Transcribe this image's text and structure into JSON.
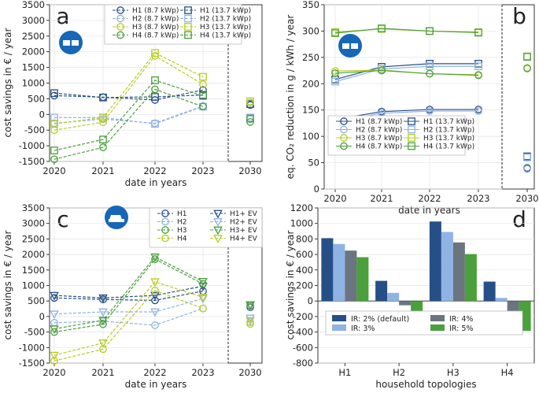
{
  "colors": {
    "blue_dark": "#274f87",
    "blue_light": "#8fb3e3",
    "green": "#4aa03a",
    "yellow": "#b7cc22",
    "grey": "#6b7580",
    "icon_bg": "#1766b8"
  },
  "chart_data": [
    {
      "id": "a",
      "type": "line",
      "panel_label": "a",
      "xlabel": "date in years",
      "ylabel": "cost savings in € / year",
      "ylim": [
        -1500,
        3500
      ],
      "yticks": [
        -1500,
        -1000,
        -500,
        0,
        500,
        1000,
        1500,
        2000,
        2500,
        3000,
        3500
      ],
      "x": [
        2020,
        2021,
        2022,
        2023
      ],
      "xticks": [
        "2020",
        "2021",
        "2022",
        "2023",
        "2030"
      ],
      "series": [
        {
          "name": "H1 (8.7 kWp)",
          "color": "blue_dark",
          "marker": "circle",
          "dash": true,
          "values": [
            600,
            550,
            460,
            780
          ],
          "v2030": 300
        },
        {
          "name": "H1 (13.7 kWp)",
          "color": "blue_dark",
          "marker": "square",
          "dash": true,
          "values": [
            680,
            540,
            560,
            620
          ],
          "v2030": 330
        },
        {
          "name": "H2 (8.7 kWp)",
          "color": "blue_light",
          "marker": "circle",
          "dash": true,
          "values": [
            -280,
            -150,
            -280,
            270
          ],
          "v2030": -150
        },
        {
          "name": "H2 (13.7 kWp)",
          "color": "blue_light",
          "marker": "square",
          "dash": true,
          "values": [
            -100,
            -100,
            -300,
            250
          ],
          "v2030": -100
        },
        {
          "name": "H3 (8.7 kWp)",
          "color": "yellow",
          "marker": "circle",
          "dash": true,
          "values": [
            -500,
            -250,
            1870,
            960
          ],
          "v2030": 380
        },
        {
          "name": "H3 (13.7 kWp)",
          "color": "yellow",
          "marker": "square",
          "dash": true,
          "values": [
            -300,
            -100,
            1960,
            1200
          ],
          "v2030": 420
        },
        {
          "name": "H4 (8.7 kWp)",
          "color": "green",
          "marker": "circle",
          "dash": true,
          "values": [
            -1430,
            -1050,
            800,
            250
          ],
          "v2030": -240
        },
        {
          "name": "H4 (13.7 kWp)",
          "color": "green",
          "marker": "square",
          "dash": true,
          "values": [
            -1150,
            -800,
            1090,
            590
          ],
          "v2030": -130
        }
      ]
    },
    {
      "id": "b",
      "type": "line",
      "panel_label": "b",
      "xlabel": "date in years",
      "ylabel": "eq. CO₂ reduction in g / kWh / year",
      "ylim": [
        0,
        350
      ],
      "yticks": [
        0,
        50,
        100,
        150,
        200,
        250,
        300,
        350
      ],
      "x": [
        2020,
        2021,
        2022,
        2023
      ],
      "xticks": [
        "2020",
        "2021",
        "2022",
        "2023",
        "2030"
      ],
      "series": [
        {
          "name": "H1 (8.7 kWp)",
          "color": "blue_dark",
          "marker": "circle",
          "dash": false,
          "values": [
            132,
            147,
            151,
            151
          ],
          "v2030": 40
        },
        {
          "name": "H1 (13.7 kWp)",
          "color": "blue_dark",
          "marker": "square",
          "dash": false,
          "values": [
            208,
            232,
            238,
            238
          ],
          "v2030": 62
        },
        {
          "name": "H2 (8.7 kWp)",
          "color": "blue_light",
          "marker": "circle",
          "dash": false,
          "values": [
            128,
            144,
            148,
            148
          ],
          "v2030": 38
        },
        {
          "name": "H2 (13.7 kWp)",
          "color": "blue_light",
          "marker": "square",
          "dash": false,
          "values": [
            204,
            228,
            233,
            233
          ],
          "v2030": 60
        },
        {
          "name": "H3 (8.7 kWp)",
          "color": "yellow",
          "marker": "circle",
          "dash": false,
          "values": [
            224,
            226,
            219,
            217
          ],
          "v2030": 230
        },
        {
          "name": "H3 (13.7 kWp)",
          "color": "yellow",
          "marker": "square",
          "dash": false,
          "values": [
            298,
            304,
            300,
            298
          ],
          "v2030": 252
        },
        {
          "name": "H4 (8.7 kWp)",
          "color": "green",
          "marker": "circle",
          "dash": false,
          "values": [
            220,
            225,
            219,
            216
          ],
          "v2030": 229
        },
        {
          "name": "H4 (13.7 kWp)",
          "color": "green",
          "marker": "square",
          "dash": false,
          "values": [
            296,
            305,
            300,
            297
          ],
          "v2030": 251
        }
      ]
    },
    {
      "id": "c",
      "type": "line",
      "panel_label": "c",
      "xlabel": "date in years",
      "ylabel": "cost savings in € / year",
      "ylim": [
        -1500,
        3500
      ],
      "yticks": [
        -1500,
        -1000,
        -500,
        0,
        500,
        1000,
        1500,
        2000,
        2500,
        3000,
        3500
      ],
      "x": [
        2020,
        2021,
        2022,
        2023
      ],
      "xticks": [
        "2020",
        "2021",
        "2022",
        "2023",
        "2030"
      ],
      "series": [
        {
          "name": "H1",
          "color": "blue_dark",
          "marker": "circle",
          "dash": true,
          "values": [
            600,
            550,
            520,
            820
          ],
          "v2030": 300
        },
        {
          "name": "H1+ EV",
          "color": "blue_dark",
          "marker": "triangle",
          "dash": true,
          "values": [
            680,
            600,
            680,
            980
          ],
          "v2030": 370
        },
        {
          "name": "H2",
          "color": "blue_light",
          "marker": "circle",
          "dash": true,
          "values": [
            -200,
            -150,
            -280,
            260
          ],
          "v2030": -180
        },
        {
          "name": "H2+ EV",
          "color": "blue_light",
          "marker": "triangle",
          "dash": true,
          "values": [
            80,
            150,
            150,
            580
          ],
          "v2030": -50
        },
        {
          "name": "H3",
          "color": "green",
          "marker": "circle",
          "dash": true,
          "values": [
            -500,
            -250,
            1850,
            1050
          ],
          "v2030": 350
        },
        {
          "name": "H3+ EV",
          "color": "green",
          "marker": "triangle",
          "dash": true,
          "values": [
            -400,
            -120,
            1920,
            1130
          ],
          "v2030": 380
        },
        {
          "name": "H4",
          "color": "yellow",
          "marker": "circle",
          "dash": true,
          "values": [
            -1430,
            -1050,
            840,
            260
          ],
          "v2030": -240
        },
        {
          "name": "H4+ EV",
          "color": "yellow",
          "marker": "triangle",
          "dash": true,
          "values": [
            -1250,
            -850,
            1120,
            620
          ],
          "v2030": -130
        }
      ]
    },
    {
      "id": "d",
      "type": "bar",
      "panel_label": "d",
      "xlabel": "household topologies",
      "ylabel": "cost savings in € / year",
      "ylim": [
        -800,
        1200
      ],
      "yticks": [
        -800,
        -600,
        -400,
        -200,
        0,
        200,
        400,
        600,
        800,
        1000,
        1200
      ],
      "categories": [
        "H1",
        "H2",
        "H3",
        "H4"
      ],
      "series": [
        {
          "name": "IR: 2% (default)",
          "color": "blue_dark",
          "values": [
            810,
            260,
            1025,
            250
          ]
        },
        {
          "name": "IR: 3%",
          "color": "blue_light",
          "values": [
            735,
            105,
            890,
            40
          ]
        },
        {
          "name": "IR: 4%",
          "color": "grey",
          "values": [
            650,
            -55,
            755,
            -175
          ]
        },
        {
          "name": "IR: 5%",
          "color": "green",
          "values": [
            565,
            -210,
            605,
            -385
          ]
        }
      ]
    }
  ]
}
